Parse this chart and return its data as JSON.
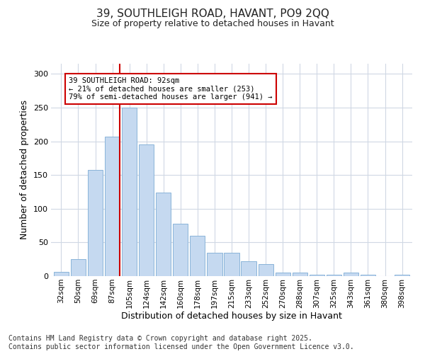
{
  "title_line1": "39, SOUTHLEIGH ROAD, HAVANT, PO9 2QQ",
  "title_line2": "Size of property relative to detached houses in Havant",
  "xlabel": "Distribution of detached houses by size in Havant",
  "ylabel": "Number of detached properties",
  "categories": [
    "32sqm",
    "50sqm",
    "69sqm",
    "87sqm",
    "105sqm",
    "124sqm",
    "142sqm",
    "160sqm",
    "178sqm",
    "197sqm",
    "215sqm",
    "233sqm",
    "252sqm",
    "270sqm",
    "288sqm",
    "307sqm",
    "325sqm",
    "343sqm",
    "361sqm",
    "380sqm",
    "398sqm"
  ],
  "bar_heights": [
    6,
    25,
    157,
    207,
    250,
    195,
    124,
    78,
    60,
    35,
    35,
    22,
    18,
    5,
    5,
    2,
    2,
    5,
    2,
    0,
    2
  ],
  "bar_color": "#c5d9f0",
  "bar_edge_color": "#8ab4d9",
  "vline_color": "#cc0000",
  "vline_x": 3.43,
  "annotation_text": "39 SOUTHLEIGH ROAD: 92sqm\n← 21% of detached houses are smaller (253)\n79% of semi-detached houses are larger (941) →",
  "annotation_box_color": "#ffffff",
  "annotation_box_edge": "#cc0000",
  "ylim_max": 315,
  "yticks": [
    0,
    50,
    100,
    150,
    200,
    250,
    300
  ],
  "grid_color": "#d0d8e4",
  "bg_color": "#ffffff",
  "footer_line1": "Contains HM Land Registry data © Crown copyright and database right 2025.",
  "footer_line2": "Contains public sector information licensed under the Open Government Licence v3.0.",
  "footer_fontsize": 7.0,
  "title_fontsize": 11,
  "subtitle_fontsize": 9
}
